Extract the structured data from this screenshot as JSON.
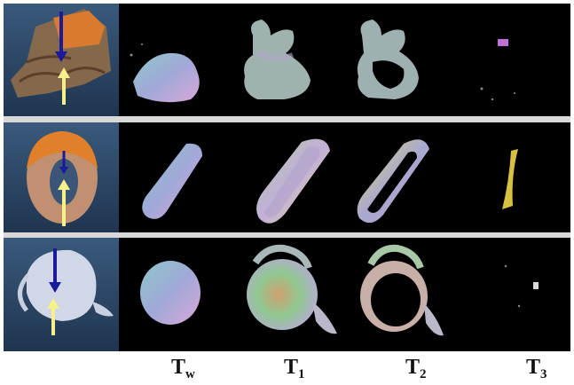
{
  "figure": {
    "rows": [
      {
        "object": "bunny"
      },
      {
        "object": "torus"
      },
      {
        "object": "teapot"
      }
    ],
    "columns": [
      {
        "base": "T",
        "sub": "w"
      },
      {
        "base": "T",
        "sub": "1"
      },
      {
        "base": "T",
        "sub": "2"
      },
      {
        "base": "T",
        "sub": "3"
      }
    ]
  },
  "colors": {
    "panel_background": "#000000",
    "scene_background": "#2b4a6a",
    "separator": "#d8d8d8",
    "arrow_down": "#1a1a9a",
    "arrow_up": "#f5f08a"
  }
}
